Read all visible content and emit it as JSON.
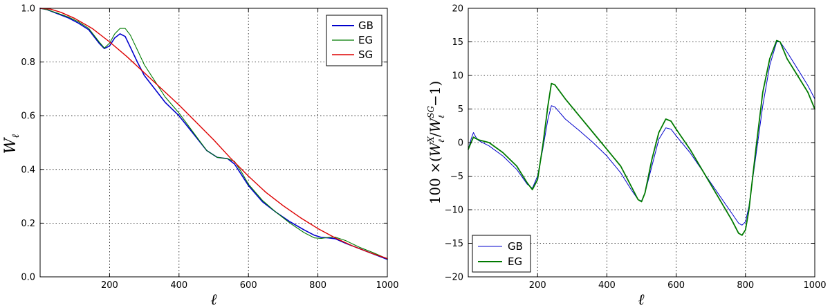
{
  "chart_data": [
    {
      "type": "line",
      "panel": "left",
      "title": "",
      "xlabel": "ℓ",
      "ylabel": "W",
      "ylabel_subscript": "ℓ",
      "xlim": [
        0,
        1000
      ],
      "ylim": [
        0.0,
        1.0
      ],
      "xticks": [
        200,
        400,
        600,
        800,
        1000
      ],
      "yticks": [
        0.0,
        0.2,
        0.4,
        0.6,
        0.8,
        1.0
      ],
      "xtick_labels": [
        "200",
        "400",
        "600",
        "800",
        "1000"
      ],
      "ytick_labels": [
        "0.0",
        "0.2",
        "0.4",
        "0.6",
        "0.8",
        "1.0"
      ],
      "grid": true,
      "legend_position": "top-right",
      "series": [
        {
          "name": "GB",
          "color": "#0000cc",
          "width": 1.6,
          "x": [
            0,
            20,
            50,
            80,
            110,
            140,
            170,
            185,
            200,
            215,
            230,
            245,
            260,
            280,
            300,
            330,
            360,
            400,
            440,
            480,
            510,
            540,
            560,
            580,
            600,
            640,
            680,
            720,
            760,
            790,
            810,
            830,
            850,
            880,
            920,
            960,
            1000
          ],
          "y": [
            1.0,
            0.995,
            0.98,
            0.965,
            0.945,
            0.92,
            0.87,
            0.85,
            0.86,
            0.89,
            0.905,
            0.895,
            0.855,
            0.8,
            0.75,
            0.7,
            0.65,
            0.6,
            0.535,
            0.47,
            0.445,
            0.44,
            0.42,
            0.38,
            0.34,
            0.28,
            0.24,
            0.205,
            0.175,
            0.155,
            0.147,
            0.145,
            0.142,
            0.125,
            0.105,
            0.085,
            0.065
          ]
        },
        {
          "name": "EG",
          "color": "#007a00",
          "width": 1.1,
          "x": [
            0,
            20,
            50,
            80,
            110,
            140,
            170,
            185,
            200,
            215,
            230,
            245,
            260,
            280,
            300,
            330,
            360,
            400,
            440,
            480,
            510,
            540,
            560,
            580,
            600,
            640,
            680,
            720,
            760,
            790,
            810,
            830,
            850,
            880,
            920,
            960,
            1000
          ],
          "y": [
            1.0,
            0.995,
            0.982,
            0.968,
            0.95,
            0.925,
            0.875,
            0.852,
            0.87,
            0.905,
            0.925,
            0.925,
            0.9,
            0.845,
            0.79,
            0.73,
            0.67,
            0.61,
            0.54,
            0.47,
            0.445,
            0.44,
            0.43,
            0.39,
            0.345,
            0.285,
            0.24,
            0.2,
            0.165,
            0.145,
            0.143,
            0.147,
            0.148,
            0.135,
            0.11,
            0.09,
            0.067
          ]
        },
        {
          "name": "SG",
          "color": "#dd0000",
          "width": 1.4,
          "x": [
            0,
            30,
            60,
            100,
            150,
            200,
            250,
            300,
            350,
            400,
            450,
            500,
            550,
            600,
            650,
            700,
            750,
            800,
            850,
            900,
            950,
            1000
          ],
          "y": [
            1.0,
            0.997,
            0.985,
            0.962,
            0.925,
            0.875,
            0.82,
            0.76,
            0.7,
            0.64,
            0.575,
            0.51,
            0.44,
            0.375,
            0.315,
            0.265,
            0.22,
            0.18,
            0.145,
            0.115,
            0.09,
            0.068
          ]
        }
      ]
    },
    {
      "type": "line",
      "panel": "right",
      "title": "",
      "xlabel": "ℓ",
      "ylabel": "100 ×(W_ℓ^X / W_ℓ^SG −1)",
      "ylabel_parts": {
        "prefix": "100 ×(",
        "base1": "W",
        "sup1": "X",
        "sub1": "ℓ",
        "slash": "/",
        "base2": "W",
        "sup2": "SG",
        "sub2": "ℓ",
        "suffix": "−1)"
      },
      "xlim": [
        0,
        1000
      ],
      "ylim": [
        -20,
        20
      ],
      "xticks": [
        200,
        400,
        600,
        800,
        1000
      ],
      "yticks": [
        -20,
        -15,
        -10,
        -5,
        0,
        5,
        10,
        15,
        20
      ],
      "xtick_labels": [
        "200",
        "400",
        "600",
        "800",
        "1000"
      ],
      "ytick_labels": [
        "−20",
        "−15",
        "−10",
        "−5",
        "0",
        "5",
        "10",
        "15",
        "20"
      ],
      "grid": true,
      "legend_position": "bottom-left",
      "series": [
        {
          "name": "GB",
          "color": "#0000cc",
          "width": 1.0,
          "x": [
            0,
            8,
            15,
            22,
            30,
            60,
            100,
            140,
            170,
            185,
            200,
            215,
            230,
            240,
            250,
            280,
            320,
            360,
            400,
            440,
            470,
            490,
            500,
            510,
            530,
            550,
            570,
            585,
            600,
            640,
            680,
            720,
            760,
            780,
            790,
            800,
            810,
            830,
            850,
            870,
            890,
            900,
            920,
            950,
            980,
            1000
          ],
          "y": [
            -1.0,
            0.5,
            1.5,
            0.8,
            0.3,
            -0.5,
            -2.0,
            -4.0,
            -6.2,
            -6.8,
            -5.0,
            -1.0,
            3.5,
            5.5,
            5.3,
            3.5,
            1.8,
            0.0,
            -2.0,
            -4.5,
            -7.0,
            -8.5,
            -8.7,
            -7.5,
            -3.5,
            0.5,
            2.2,
            2.0,
            1.0,
            -1.5,
            -4.5,
            -7.5,
            -10.5,
            -12.0,
            -12.3,
            -11.8,
            -9.5,
            -2.0,
            5.5,
            11.5,
            15.0,
            15.0,
            13.5,
            11.0,
            8.5,
            6.5
          ]
        },
        {
          "name": "EG",
          "color": "#007a00",
          "width": 1.8,
          "x": [
            0,
            8,
            15,
            22,
            30,
            60,
            100,
            140,
            170,
            185,
            200,
            215,
            230,
            240,
            250,
            280,
            320,
            360,
            400,
            440,
            470,
            490,
            500,
            510,
            530,
            550,
            570,
            585,
            600,
            640,
            680,
            720,
            760,
            780,
            790,
            800,
            810,
            830,
            850,
            870,
            890,
            900,
            920,
            950,
            980,
            1000
          ],
          "y": [
            -1.0,
            0.0,
            0.8,
            0.6,
            0.4,
            0.0,
            -1.5,
            -3.5,
            -6.0,
            -7.0,
            -5.5,
            -0.5,
            5.5,
            8.8,
            8.6,
            6.5,
            4.0,
            1.5,
            -1.0,
            -3.5,
            -6.5,
            -8.5,
            -8.8,
            -7.5,
            -2.5,
            1.5,
            3.5,
            3.2,
            2.0,
            -1.0,
            -4.5,
            -8.0,
            -11.5,
            -13.5,
            -13.8,
            -13.0,
            -10.0,
            -1.0,
            7.5,
            12.5,
            15.2,
            15.0,
            12.5,
            10.0,
            7.5,
            5.0
          ]
        }
      ]
    }
  ]
}
